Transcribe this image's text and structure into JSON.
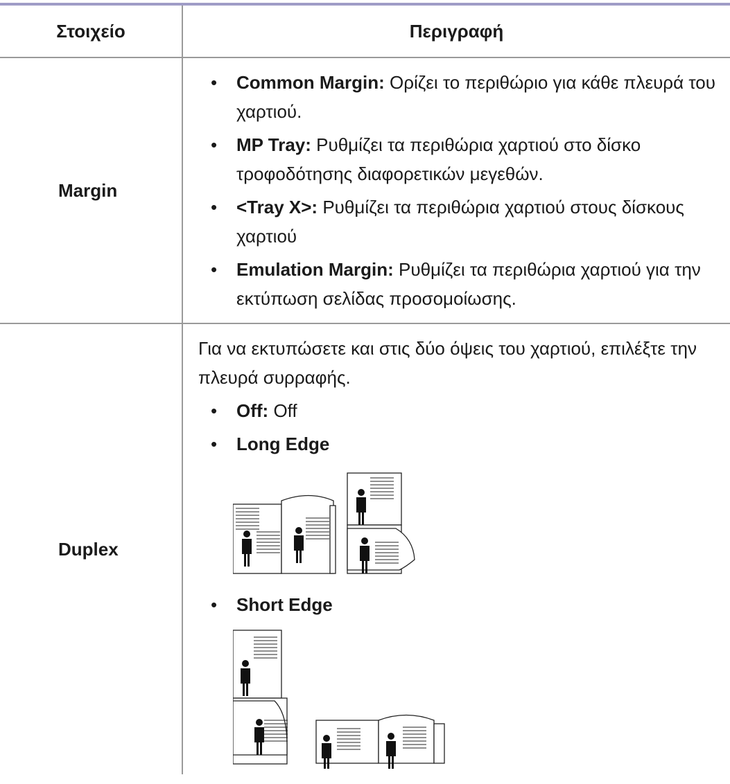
{
  "table": {
    "headers": [
      "Στοιχείο",
      "Περιγραφή"
    ],
    "rows": [
      {
        "item": "Margin",
        "items": [
          {
            "term": "Common Margin:",
            "text": "Ορίζει το περιθώριο για κάθε πλευρά του χαρτιού."
          },
          {
            "term": "MP Tray:",
            "text": "Ρυθμίζει τα περιθώρια χαρτιού στο δίσκο τροφοδότησης διαφορετικών μεγεθών."
          },
          {
            "term": "<Tray X>:",
            "text": "Ρυθμίζει τα περιθώρια χαρτιού στους δίσκους χαρτιού"
          },
          {
            "term": "Emulation Margin:",
            "text": "Ρυθμίζει τα περιθώρια χαρτιού για την εκτύπωση σελίδας προσομοίωσης."
          }
        ]
      },
      {
        "item": "Duplex",
        "intro": "Για να εκτυπώσετε και στις δύο όψεις του χαρτιού, επιλέξτε την πλευρά συρραφής.",
        "items": [
          {
            "term": "Off:",
            "text": "Off"
          },
          {
            "term": "Long Edge"
          },
          {
            "term": "Short Edge"
          }
        ]
      }
    ]
  }
}
